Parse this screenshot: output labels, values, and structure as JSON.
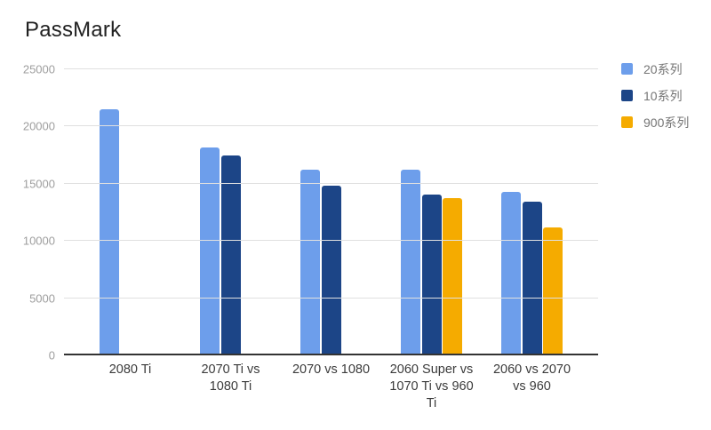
{
  "title": "PassMark",
  "chart_data": {
    "type": "bar",
    "title": "PassMark",
    "categories": [
      "2080 Ti",
      "2070 Ti vs 1080 Ti",
      "2070 vs 1080",
      "2060 Super vs 1070 Ti vs 960 Ti",
      "2060 vs 2070 vs 960"
    ],
    "series": [
      {
        "name": "20系列",
        "color": "#6D9EEB",
        "values": [
          21500,
          18100,
          16200,
          16200,
          14250
        ]
      },
      {
        "name": "10系列",
        "color": "#1C4587",
        "values": [
          null,
          17400,
          14750,
          13950,
          13350
        ]
      },
      {
        "name": "900系列",
        "color": "#F5AB00",
        "values": [
          null,
          null,
          null,
          13650,
          11100
        ]
      }
    ],
    "xlabel": "",
    "ylabel": "",
    "ylim": [
      0,
      25000
    ],
    "yticks": [
      0,
      5000,
      10000,
      15000,
      20000,
      25000
    ],
    "grid": true,
    "legend_position": "right"
  },
  "colors": {
    "background": "#FFFFFF",
    "title_text": "#212121",
    "gridline": "#E0E0E0",
    "baseline": "#333333",
    "y_tick_label": "#9E9E9E",
    "x_category_label": "#3B3B3B",
    "legend_label": "#757575"
  }
}
